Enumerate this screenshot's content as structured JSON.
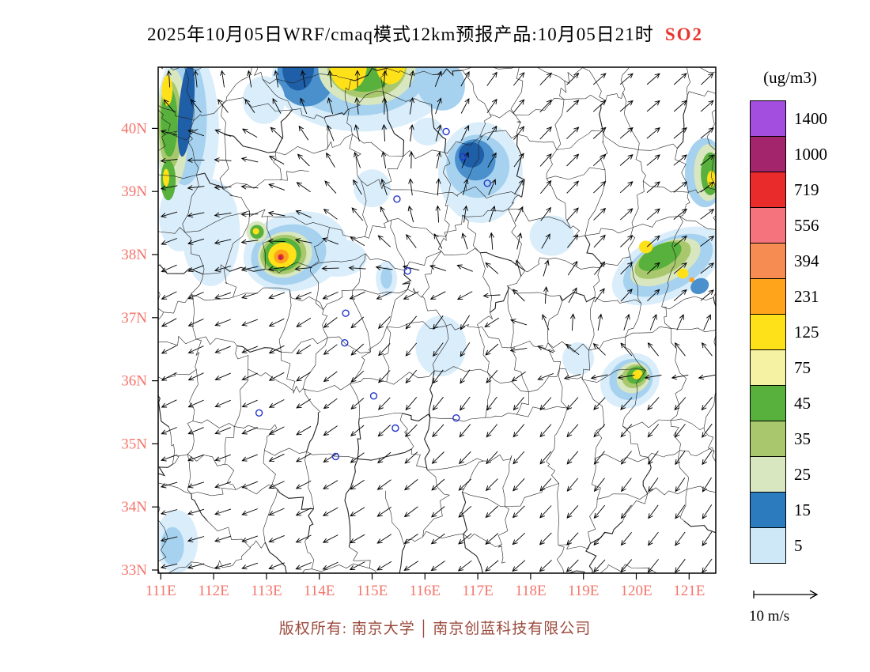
{
  "title": {
    "main": "2025年10月05日WRF/cmaq模式12km预报产品:10月05日21时",
    "species": "SO2"
  },
  "colors": {
    "species_label": "#e8342c",
    "axis_labels": "#f4756b",
    "footer_text": "#9b4a3c",
    "city_marker": "#2233cc",
    "palette": {
      "pb": "#d9edfa",
      "lb": "#a6d2ef",
      "mb": "#4a90cc",
      "db": "#1f5fa8",
      "pg": "#d8e7c0",
      "og": "#a9c86d",
      "gr": "#57b13c",
      "py": "#f6f2a3",
      "ye": "#ffe11a",
      "or": "#ffa41b",
      "cor": "#f68c51",
      "sal": "#f4737d",
      "re": "#ea2b2b",
      "mag": "#a3256b",
      "pu": "#a44ee0"
    }
  },
  "legend": {
    "unit": "(ug/m3)",
    "levels": [
      {
        "value": "1400",
        "color": "#a44ee0"
      },
      {
        "value": "1000",
        "color": "#a3256b"
      },
      {
        "value": "719",
        "color": "#ea2b2b"
      },
      {
        "value": "556",
        "color": "#f4737d"
      },
      {
        "value": "394",
        "color": "#f68c51"
      },
      {
        "value": "231",
        "color": "#ffa41b"
      },
      {
        "value": "125",
        "color": "#ffe11a"
      },
      {
        "value": "75",
        "color": "#f6f2a3"
      },
      {
        "value": "45",
        "color": "#57b13c"
      },
      {
        "value": "35",
        "color": "#a9c86d"
      },
      {
        "value": "25",
        "color": "#d8e7c0"
      },
      {
        "value": "15",
        "color": "#2d7bbf"
      },
      {
        "value": "5",
        "color": "#cfe8f8"
      }
    ]
  },
  "axes": {
    "y": [
      {
        "label": "40N",
        "value": 40
      },
      {
        "label": "39N",
        "value": 39
      },
      {
        "label": "38N",
        "value": 38
      },
      {
        "label": "37N",
        "value": 37
      },
      {
        "label": "36N",
        "value": 36
      },
      {
        "label": "35N",
        "value": 35
      },
      {
        "label": "34N",
        "value": 34
      },
      {
        "label": "33N",
        "value": 33
      }
    ],
    "x": [
      {
        "label": "111E",
        "value": 111
      },
      {
        "label": "112E",
        "value": 112
      },
      {
        "label": "113E",
        "value": 113
      },
      {
        "label": "114E",
        "value": 114
      },
      {
        "label": "115E",
        "value": 115
      },
      {
        "label": "116E",
        "value": 116
      },
      {
        "label": "117E",
        "value": 117
      },
      {
        "label": "118E",
        "value": 118
      },
      {
        "label": "119E",
        "value": 119
      },
      {
        "label": "120E",
        "value": 120
      },
      {
        "label": "121E",
        "value": 121
      }
    ]
  },
  "wind_scale": {
    "label": "10 m/s"
  },
  "footer": {
    "left": "版权所有: 南京大学",
    "separator": "│",
    "right": "南京创蓝科技有限公司"
  },
  "chart_data": {
    "type": "map",
    "projection": {
      "lon_range": [
        110.95,
        121.5
      ],
      "lat_range": [
        32.95,
        40.97
      ]
    },
    "blobs": [
      [
        "pb",
        111.5,
        40.0,
        0.6,
        1.3,
        0
      ],
      [
        "pb",
        111.35,
        38.6,
        0.38,
        0.55,
        0
      ],
      [
        "lb",
        111.45,
        40.15,
        0.42,
        1.05,
        0
      ],
      [
        "pg",
        111.22,
        40.0,
        0.3,
        0.95,
        0
      ],
      [
        "og",
        111.18,
        40.05,
        0.22,
        0.7,
        0
      ],
      [
        "gr",
        111.16,
        40.1,
        0.16,
        0.55,
        0
      ],
      [
        "db",
        111.48,
        40.3,
        0.14,
        0.75,
        5
      ],
      [
        "ye",
        111.12,
        40.6,
        0.1,
        0.24,
        0
      ],
      [
        "gr",
        111.14,
        39.18,
        0.14,
        0.32,
        0
      ],
      [
        "ye",
        111.1,
        39.22,
        0.06,
        0.14,
        0
      ],
      [
        "pb",
        114.8,
        40.8,
        1.7,
        0.85,
        0
      ],
      [
        "lb",
        114.7,
        40.9,
        1.35,
        0.7,
        0
      ],
      [
        "mb",
        113.75,
        40.85,
        0.55,
        0.5,
        0
      ],
      [
        "db",
        113.6,
        40.95,
        0.3,
        0.35,
        0
      ],
      [
        "pg",
        114.9,
        40.95,
        0.92,
        0.58,
        0
      ],
      [
        "og",
        114.9,
        40.98,
        0.75,
        0.5,
        0
      ],
      [
        "gr",
        114.85,
        41.0,
        0.6,
        0.42,
        0
      ],
      [
        "ye",
        114.55,
        41.0,
        0.35,
        0.4,
        0
      ],
      [
        "ye",
        115.35,
        41.02,
        0.28,
        0.32,
        0
      ],
      [
        "lb",
        116.3,
        40.7,
        0.45,
        0.42,
        -20
      ],
      [
        "pb",
        112.95,
        40.45,
        0.4,
        0.38,
        0
      ],
      [
        "pb",
        117.05,
        39.3,
        0.8,
        0.8,
        0
      ],
      [
        "lb",
        117.0,
        39.4,
        0.6,
        0.5,
        -35
      ],
      [
        "mb",
        116.95,
        39.5,
        0.38,
        0.33,
        -35
      ],
      [
        "db",
        116.88,
        39.58,
        0.24,
        0.2,
        -35
      ],
      [
        "pb",
        115.0,
        39.05,
        0.35,
        0.3,
        0
      ],
      [
        "pb",
        116.05,
        39.95,
        0.3,
        0.22,
        0
      ],
      [
        "lb",
        121.3,
        39.3,
        0.38,
        0.55,
        0
      ],
      [
        "pg",
        121.36,
        39.3,
        0.27,
        0.45,
        0
      ],
      [
        "gr",
        121.4,
        39.28,
        0.18,
        0.34,
        0
      ],
      [
        "ye",
        121.42,
        39.2,
        0.08,
        0.13,
        0
      ],
      [
        "pb",
        111.95,
        38.35,
        0.55,
        0.85,
        0
      ],
      [
        "pb",
        113.55,
        38.05,
        1.0,
        0.62,
        -15
      ],
      [
        "pb",
        114.35,
        37.95,
        0.55,
        0.3,
        0
      ],
      [
        "lb",
        113.42,
        38.0,
        0.72,
        0.47,
        -15
      ],
      [
        "pg",
        113.35,
        38.0,
        0.52,
        0.36,
        -15
      ],
      [
        "og",
        113.32,
        38.0,
        0.44,
        0.31,
        -15
      ],
      [
        "gr",
        113.3,
        38.0,
        0.36,
        0.26,
        -15
      ],
      [
        "ye",
        113.3,
        37.99,
        0.27,
        0.2,
        -15
      ],
      [
        "or",
        113.28,
        37.97,
        0.14,
        0.11,
        -15
      ],
      [
        "re",
        113.27,
        37.96,
        0.055,
        0.05,
        0
      ],
      [
        "mag",
        113.26,
        37.95,
        0.025,
        0.022,
        0
      ],
      [
        "pg",
        112.82,
        38.36,
        0.2,
        0.17,
        0
      ],
      [
        "gr",
        112.82,
        38.36,
        0.13,
        0.11,
        0
      ],
      [
        "ye",
        112.8,
        38.37,
        0.06,
        0.05,
        0
      ],
      [
        "pb",
        115.27,
        37.62,
        0.2,
        0.28,
        0
      ],
      [
        "lb",
        115.27,
        37.63,
        0.11,
        0.17,
        0
      ],
      [
        "pb",
        116.3,
        36.55,
        0.48,
        0.48,
        0
      ],
      [
        "pb",
        118.4,
        38.3,
        0.42,
        0.32,
        0
      ],
      [
        "pb",
        118.9,
        36.35,
        0.3,
        0.26,
        0
      ],
      [
        "pb",
        120.6,
        37.82,
        1.15,
        0.5,
        -27
      ],
      [
        "lb",
        120.6,
        37.83,
        0.92,
        0.4,
        -27
      ],
      [
        "pg",
        120.55,
        37.88,
        0.72,
        0.3,
        -27
      ],
      [
        "og",
        120.5,
        37.92,
        0.58,
        0.24,
        -27
      ],
      [
        "gr",
        120.45,
        37.97,
        0.44,
        0.18,
        -27
      ],
      [
        "ye",
        120.18,
        38.12,
        0.13,
        0.1,
        0
      ],
      [
        "ye",
        120.88,
        37.7,
        0.11,
        0.08,
        0
      ],
      [
        "or",
        121.05,
        37.6,
        0.05,
        0.04,
        0
      ],
      [
        "mb",
        121.2,
        37.5,
        0.18,
        0.12,
        -27
      ],
      [
        "pb",
        119.88,
        36.0,
        0.58,
        0.42,
        -30
      ],
      [
        "lb",
        119.9,
        36.02,
        0.42,
        0.32,
        -30
      ],
      [
        "pg",
        119.94,
        36.05,
        0.32,
        0.24,
        -30
      ],
      [
        "og",
        119.97,
        36.07,
        0.25,
        0.18,
        -30
      ],
      [
        "gr",
        120.0,
        36.09,
        0.19,
        0.13,
        -30
      ],
      [
        "ye",
        120.02,
        36.1,
        0.1,
        0.07,
        -30
      ],
      [
        "pb",
        111.3,
        33.45,
        0.4,
        0.5,
        0
      ],
      [
        "lb",
        111.22,
        33.38,
        0.22,
        0.3,
        0
      ]
    ],
    "markers": [
      [
        116.4,
        39.95
      ],
      [
        116.72,
        39.55
      ],
      [
        117.18,
        39.13
      ],
      [
        115.47,
        38.88
      ],
      [
        115.67,
        37.74
      ],
      [
        114.5,
        37.07
      ],
      [
        114.48,
        36.6
      ],
      [
        112.86,
        35.49
      ],
      [
        114.31,
        34.8
      ],
      [
        115.44,
        35.25
      ],
      [
        116.59,
        35.41
      ],
      [
        115.03,
        35.76
      ]
    ],
    "wind": {
      "grid_lons": [
        111,
        112.5,
        114,
        115.5,
        117,
        118.5,
        120,
        121.5
      ],
      "grid_lats": [
        41,
        39.7,
        38.4,
        37.1,
        35.8,
        34.4,
        33
      ],
      "angle_grid": [
        [
          75,
          85,
          95,
          80,
          55,
          45,
          40,
          45
        ],
        [
          185,
          170,
          120,
          90,
          60,
          45,
          40,
          38
        ],
        [
          200,
          190,
          155,
          115,
          80,
          50,
          42,
          36
        ],
        [
          210,
          198,
          215,
          228,
          240,
          70,
          45,
          40
        ],
        [
          208,
          202,
          215,
          230,
          235,
          228,
          226,
          230
        ],
        [
          196,
          200,
          210,
          218,
          224,
          230,
          234,
          238
        ],
        [
          192,
          198,
          204,
          212,
          218,
          224,
          230,
          235
        ]
      ]
    }
  }
}
